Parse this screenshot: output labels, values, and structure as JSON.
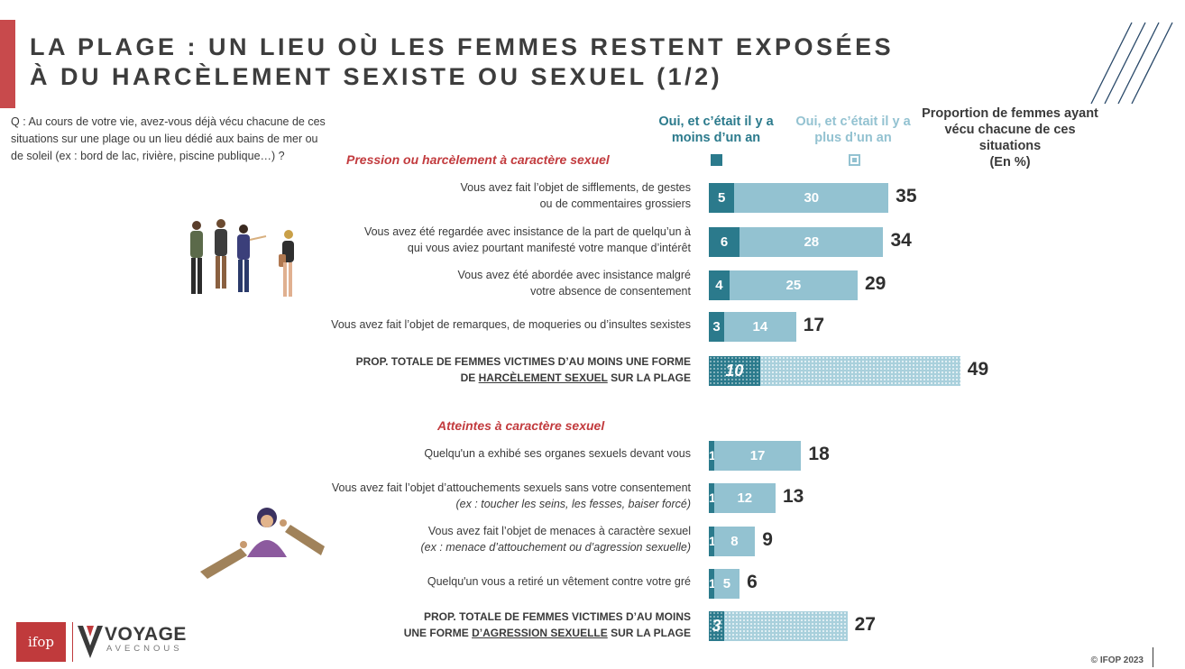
{
  "title_lines": [
    "LA PLAGE : UN LIEU OÙ LES FEMMES RESTENT EXPOSÉES",
    "À DU HARCÈLEMENT SEXISTE OU SEXUEL (1/2)"
  ],
  "question": "Q : Au cours de votre vie, avez-vous déjà vécu chacune de ces situations sur une plage ou un lieu dédié aux bains de mer ou de soleil (ex : bord de lac, rivière, piscine publique…) ?",
  "legend": {
    "recent": "Oui, et c’était il y a moins d’un an",
    "older": "Oui, et c’était il y a plus d’un an",
    "total": "Proportion de femmes ayant vécu chacune de ces situations",
    "unit": "(En %)"
  },
  "colors": {
    "accent_red": "#c84a4c",
    "recent": "#2b7a8c",
    "older": "#93c2d1",
    "section_title": "#c23b3e"
  },
  "chart_data": {
    "type": "bar",
    "orientation": "horizontal",
    "stacked": true,
    "unit": "%",
    "series_names": [
      "Oui, et c’était il y a moins d’un an",
      "Oui, et c’était il y a plus d’un an"
    ],
    "sections": [
      {
        "title": "Pression ou harcèlement à caractère sexuel",
        "rows": [
          {
            "label": "Vous avez fait l’objet de sifflements, de gestes",
            "label2": "ou de commentaires grossiers",
            "recent": 5,
            "older": 30,
            "total": 35
          },
          {
            "label": "Vous avez été regardée avec insistance de la part de quelqu’un à",
            "label2": "qui vous aviez pourtant manifesté votre manque d’intérêt",
            "recent": 6,
            "older": 28,
            "total": 34
          },
          {
            "label": "Vous avez été abordée avec insistance malgré",
            "label2": "votre absence de consentement",
            "recent": 4,
            "older": 25,
            "total": 29
          },
          {
            "label": "Vous avez fait l’objet de remarques, de moqueries ou d’insultes sexistes",
            "recent": 3,
            "older": 14,
            "total": 17
          }
        ],
        "summary": {
          "line1": "PROP. TOTALE DE FEMMES VICTIMES D’AU MOINS UNE FORME",
          "pre": "DE ",
          "emph": "HARCÈLEMENT SEXUEL",
          "post": " SUR LA PLAGE",
          "recent": 10,
          "total": 49
        }
      },
      {
        "title": "Atteintes à caractère sexuel",
        "rows": [
          {
            "label": "Quelqu'un a exhibé ses organes sexuels devant vous",
            "recent": 1,
            "older": 17,
            "total": 18
          },
          {
            "label": "Vous avez fait l’objet d’attouchements sexuels sans votre consentement",
            "label2": "(ex : toucher les seins, les fesses, baiser forcé)",
            "recent": 1,
            "older": 12,
            "total": 13
          },
          {
            "label": "Vous avez fait l’objet de menaces à caractère sexuel",
            "label2": "(ex : menace d’attouchement ou d’agression sexuelle)",
            "recent": 1,
            "older": 8,
            "total": 9
          },
          {
            "label": "Quelqu'un vous a retiré un vêtement contre votre gré",
            "recent": 1,
            "older": 5,
            "total": 6
          }
        ],
        "summary": {
          "line1": "PROP. TOTALE DE FEMMES VICTIMES D’AU MOINS",
          "pre": "UNE FORME ",
          "emph": "D’AGRESSION SEXUELLE",
          "post": " SUR LA PLAGE",
          "recent": 3,
          "total": 27
        }
      }
    ]
  },
  "footer": {
    "ifop_logo": "ifop",
    "brand": "VOYAGE",
    "brand_sub": "AVECNOUS",
    "copyright": "© IFOP 2023"
  }
}
